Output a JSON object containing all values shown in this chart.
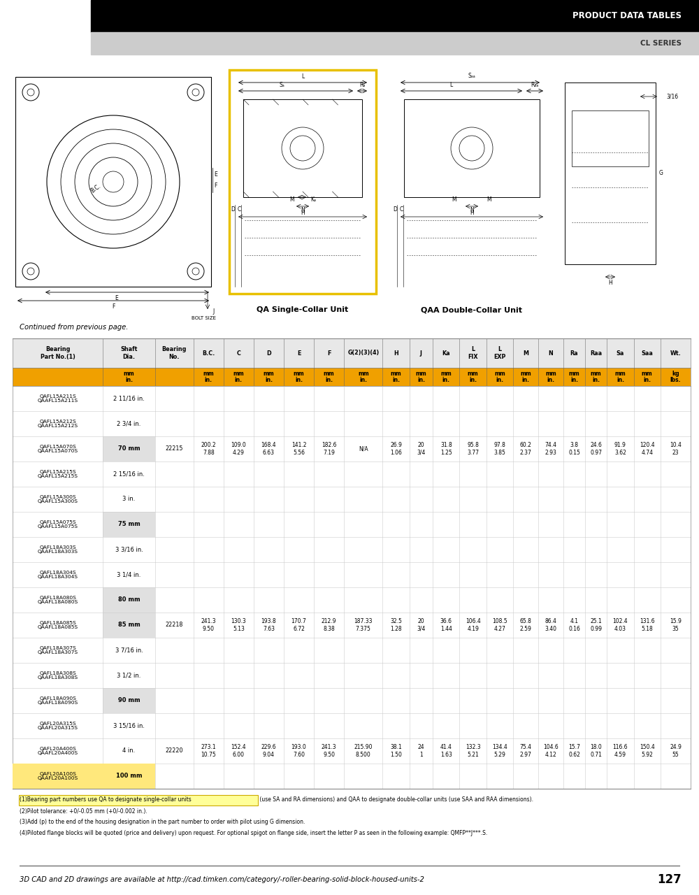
{
  "header_text": "PRODUCT DATA TABLES",
  "subheader_text": "CL SERIES",
  "page_number": "127",
  "continued_text": "Continued from previous page.",
  "footer_text": "3D CAD and 2D drawings are available at http://cad.timken.com/category/-roller-bearing-solid-block-housed-units-2",
  "orange_color": "#f0a000",
  "table_rows": [
    [
      "QAFL15A211S\nQAAFL15A211S",
      "2 11/16 in.",
      "",
      "",
      "",
      "",
      "",
      "",
      "",
      "",
      "",
      "",
      "",
      "",
      "",
      "",
      "",
      "",
      "",
      "",
      ""
    ],
    [
      "QAFL15A212S\nQAAFL15A212S",
      "2 3/4 in.",
      "",
      "",
      "",
      "",
      "",
      "",
      "",
      "",
      "",
      "",
      "",
      "",
      "",
      "",
      "",
      "",
      "",
      "",
      ""
    ],
    [
      "QAFL15A070S\nQAAFL15A070S",
      "70 mm",
      "22215",
      "200.2\n7.88",
      "109.0\n4.29",
      "168.4\n6.63",
      "141.2\n5.56",
      "182.6\n7.19",
      "N/A",
      "26.9\n1.06",
      "20\n3/4",
      "31.8\n1.25",
      "95.8\n3.77",
      "97.8\n3.85",
      "60.2\n2.37",
      "74.4\n2.93",
      "3.8\n0.15",
      "24.6\n0.97",
      "91.9\n3.62",
      "120.4\n4.74",
      "10.4\n23"
    ],
    [
      "QAFL15A215S\nQAAFL15A215S",
      "2 15/16 in.",
      "",
      "",
      "",
      "",
      "",
      "",
      "",
      "",
      "",
      "",
      "",
      "",
      "",
      "",
      "",
      "",
      "",
      "",
      ""
    ],
    [
      "QAFL15A300S\nQAAFL15A300S",
      "3 in.",
      "",
      "",
      "",
      "",
      "",
      "",
      "",
      "",
      "",
      "",
      "",
      "",
      "",
      "",
      "",
      "",
      "",
      "",
      ""
    ],
    [
      "QAFL15A075S\nQAAFL15A075S",
      "75 mm",
      "",
      "",
      "",
      "",
      "",
      "",
      "",
      "",
      "",
      "",
      "",
      "",
      "",
      "",
      "",
      "",
      "",
      "",
      ""
    ],
    [
      "QAFL18A303S\nQAAFL18A303S",
      "3 3/16 in.",
      "",
      "",
      "",
      "",
      "",
      "",
      "",
      "",
      "",
      "",
      "",
      "",
      "",
      "",
      "",
      "",
      "",
      "",
      ""
    ],
    [
      "QAFL18A304S\nQAAFL18A304S",
      "3 1/4 in.",
      "",
      "",
      "",
      "",
      "",
      "",
      "",
      "",
      "",
      "",
      "",
      "",
      "",
      "",
      "",
      "",
      "",
      "",
      ""
    ],
    [
      "QAFL18A080S\nQAAFL18A080S",
      "80 mm",
      "",
      "",
      "",
      "",
      "",
      "",
      "",
      "",
      "",
      "",
      "",
      "",
      "",
      "",
      "",
      "",
      "",
      "",
      ""
    ],
    [
      "QAFL18A085S\nQAAFL18A085S",
      "85 mm",
      "22218",
      "241.3\n9.50",
      "130.3\n5.13",
      "193.8\n7.63",
      "170.7\n6.72",
      "212.9\n8.38",
      "187.33\n7.375",
      "32.5\n1.28",
      "20\n3/4",
      "36.6\n1.44",
      "106.4\n4.19",
      "108.5\n4.27",
      "65.8\n2.59",
      "86.4\n3.40",
      "4.1\n0.16",
      "25.1\n0.99",
      "102.4\n4.03",
      "131.6\n5.18",
      "15.9\n35"
    ],
    [
      "QAFL18A307S\nQAAFL18A307S",
      "3 7/16 in.",
      "",
      "",
      "",
      "",
      "",
      "",
      "",
      "",
      "",
      "",
      "",
      "",
      "",
      "",
      "",
      "",
      "",
      "",
      ""
    ],
    [
      "QAFL18A308S\nQAAFL18A308S",
      "3 1/2 in.",
      "",
      "",
      "",
      "",
      "",
      "",
      "",
      "",
      "",
      "",
      "",
      "",
      "",
      "",
      "",
      "",
      "",
      "",
      ""
    ],
    [
      "QAFL18A090S\nQAAFL18A090S",
      "90 mm",
      "",
      "",
      "",
      "",
      "",
      "",
      "",
      "",
      "",
      "",
      "",
      "",
      "",
      "",
      "",
      "",
      "",
      "",
      ""
    ],
    [
      "QAFL20A315S\nQAAFL20A315S",
      "3 15/16 in.",
      "",
      "",
      "",
      "",
      "",
      "",
      "",
      "",
      "",
      "",
      "",
      "",
      "",
      "",
      "",
      "",
      "",
      "",
      ""
    ],
    [
      "QAFL20A400S\nQAAFL20A400S",
      "4 in.",
      "22220",
      "273.1\n10.75",
      "152.4\n6.00",
      "229.6\n9.04",
      "193.0\n7.60",
      "241.3\n9.50",
      "215.90\n8.500",
      "38.1\n1.50",
      "24\n1",
      "41.4\n1.63",
      "132.3\n5.21",
      "134.4\n5.29",
      "75.4\n2.97",
      "104.6\n4.12",
      "15.7\n0.62",
      "18.0\n0.71",
      "116.6\n4.59",
      "150.4\n5.92",
      "24.9\n55"
    ],
    [
      "QAFL20A100S\nQAAFL20A100S",
      "100 mm",
      "",
      "",
      "",
      "",
      "",
      "",
      "",
      "",
      "",
      "",
      "",
      "",
      "",
      "",
      "",
      "",
      "",
      "",
      ""
    ]
  ],
  "footnotes": [
    "(1)Bearing part numbers use QA to designate single-collar units (use SA and RA dimensions) and QAA to designate double-collar units (use SAA and RAA dimensions).",
    "(2)Pilot tolerance: +0/-0.05 mm (+0/-0.002 in.).",
    "(3)Add (p) to the end of the housing designation in the part number to order with pilot using G dimension.",
    "(4)Piloted flange blocks will be quoted (price and delivery) upon request. For optional spigot on flange side, insert the letter P as seen in the following example: QMFP**J***.S."
  ],
  "fn1_highlight": "(1)Bearing part numbers use QA to designate single-collar units",
  "col_widths_rel": [
    108,
    62,
    46,
    36,
    36,
    36,
    36,
    36,
    46,
    32,
    28,
    32,
    32,
    32,
    30,
    30,
    26,
    26,
    32,
    32,
    36
  ]
}
